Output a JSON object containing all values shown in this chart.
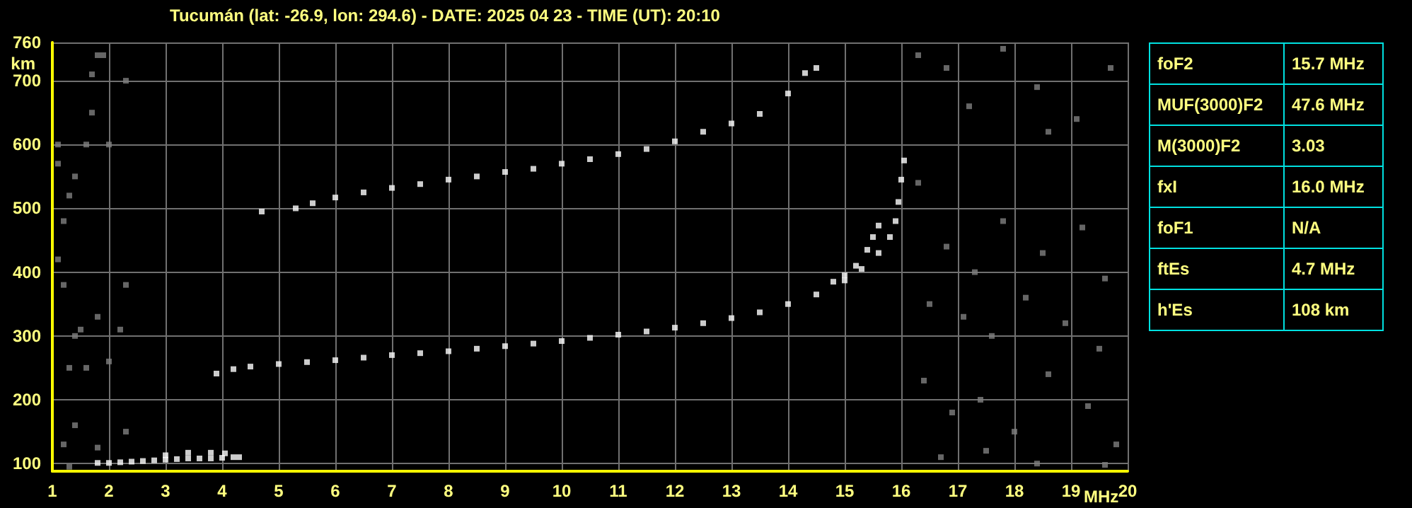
{
  "chart_data": {
    "type": "scatter",
    "title": "Tucumán (lat: -26.9, lon: 294.6) - DATE: 2025 04 23 - TIME (UT): 20:10",
    "xlabel": "MHz",
    "ylabel": "km",
    "xlim": [
      1,
      20
    ],
    "xticks": [
      1,
      2,
      3,
      4,
      5,
      6,
      7,
      8,
      9,
      10,
      11,
      12,
      13,
      14,
      15,
      16,
      17,
      18,
      19,
      20
    ],
    "ylim": [
      88,
      760
    ],
    "yticks": [
      100,
      200,
      300,
      400,
      500,
      600,
      700,
      760
    ],
    "grid": true,
    "marker": "square",
    "annotations": [
      "foF2",
      "15.7 MHz",
      "MUF(3000)F2",
      "47.6 MHz",
      "M(3000)F2",
      "3.03",
      "fxI",
      "16.0 MHz",
      "foF1",
      "N/A",
      "ftEs",
      "4.7 MHz",
      "h'Es",
      "108 km"
    ],
    "series": [
      {
        "color": "#ffffff",
        "x": [
          1.8,
          2.0,
          2.2,
          2.4,
          2.6,
          2.8,
          3.0,
          3.2,
          3.4,
          3.6,
          3.8,
          4.0,
          4.2,
          4.3,
          3.0,
          3.4,
          3.8,
          4.05
        ],
        "values": [
          101,
          101,
          102,
          103,
          104,
          105,
          106,
          107,
          108,
          108,
          108,
          109,
          110,
          110,
          113,
          117,
          117,
          116
        ]
      },
      {
        "color": "#ffffff",
        "x": [
          3.9,
          4.2,
          4.5,
          5.0,
          5.5,
          6.0,
          6.5,
          7.0,
          7.5,
          8.0,
          8.5,
          9.0,
          9.5,
          10.0,
          10.5,
          11.0,
          11.5,
          12.0,
          12.5,
          13.0,
          13.5,
          14.0,
          14.5,
          15.0,
          15.3,
          15.6,
          15.8,
          15.9,
          15.95,
          16.0,
          16.05
        ],
        "values": [
          241,
          248,
          252,
          256,
          259,
          262,
          266,
          270,
          273,
          276,
          280,
          284,
          288,
          292,
          297,
          302,
          307,
          313,
          320,
          328,
          337,
          350,
          365,
          387,
          405,
          430,
          455,
          480,
          510,
          545,
          575
        ]
      },
      {
        "color": "#ffffff",
        "x": [
          14.8,
          15.0,
          15.2,
          15.4,
          15.5,
          15.6
        ],
        "values": [
          385,
          395,
          410,
          435,
          455,
          473
        ]
      },
      {
        "color": "#ffffff",
        "x": [
          4.7,
          5.3,
          5.6,
          6.0,
          6.5,
          7.0,
          7.5,
          8.0,
          8.5,
          9.0,
          9.5,
          10.0,
          10.5,
          11.0,
          11.5,
          12.0,
          12.5,
          13.0,
          13.5,
          14.0,
          14.3,
          14.5
        ],
        "values": [
          495,
          500,
          508,
          517,
          525,
          532,
          538,
          545,
          550,
          557,
          562,
          570,
          577,
          585,
          593,
          605,
          620,
          633,
          648,
          680,
          712,
          720
        ]
      },
      {
        "color": "#808080",
        "x": [
          1.1,
          1.1,
          1.2,
          1.3,
          1.4,
          1.6,
          1.7,
          1.7,
          1.8,
          1.9,
          2.0,
          2.3,
          1.1,
          1.2,
          1.4,
          1.5,
          1.6,
          1.3,
          1.8,
          2.0,
          2.2,
          2.3,
          1.4,
          1.2,
          1.8,
          2.3,
          1.3,
          16.3,
          16.8,
          17.2,
          17.8,
          18.4,
          18.6,
          19.1,
          19.7,
          16.3,
          16.8,
          17.3,
          17.8,
          18.5,
          19.2,
          19.6,
          16.5,
          17.1,
          17.6,
          18.2,
          18.9,
          19.5,
          16.4,
          16.9,
          17.4,
          18.0,
          18.6,
          19.3,
          19.8,
          16.7,
          17.5,
          18.4,
          19.6
        ],
        "values": [
          600,
          570,
          480,
          520,
          550,
          600,
          710,
          650,
          740,
          740,
          600,
          700,
          420,
          380,
          300,
          310,
          250,
          250,
          330,
          260,
          310,
          380,
          160,
          130,
          125,
          150,
          95,
          740,
          720,
          660,
          750,
          690,
          620,
          640,
          720,
          540,
          440,
          400,
          480,
          430,
          470,
          390,
          350,
          330,
          300,
          360,
          320,
          280,
          230,
          180,
          200,
          150,
          240,
          190,
          130,
          110,
          120,
          100,
          98
        ]
      }
    ]
  }
}
